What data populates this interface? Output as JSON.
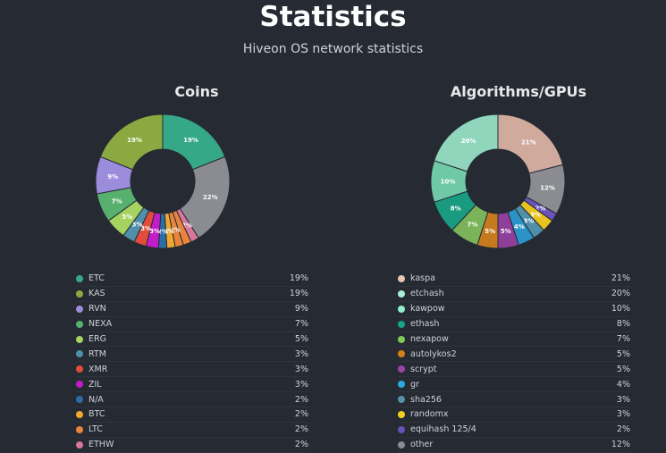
{
  "title": "Statistics",
  "subtitle": "Hiveon OS network statistics",
  "chart_data": [
    {
      "type": "pie",
      "title": "Coins",
      "donut": true,
      "slices": [
        {
          "label": "ETC",
          "value": 19,
          "display": "19%",
          "color": "#35a987"
        },
        {
          "label": "",
          "value": 22,
          "display": "22%",
          "color": "#8a8c91"
        },
        {
          "label": "",
          "value": 2,
          "display": "2%",
          "color": "#d9779a"
        },
        {
          "label": "",
          "value": 2,
          "display": "",
          "color": "#e8843c"
        },
        {
          "label": "LTC",
          "value": 2,
          "display": "2%",
          "color": "#e8843c"
        },
        {
          "label": "BTC",
          "value": 2,
          "display": "2%",
          "color": "#f0a930"
        },
        {
          "label": "N/A",
          "value": 2,
          "display": "2%",
          "color": "#2c6da7"
        },
        {
          "label": "ZIL",
          "value": 3,
          "display": "3%",
          "color": "#c21dc8"
        },
        {
          "label": "XMR",
          "value": 3,
          "display": "3%",
          "color": "#e04d3c"
        },
        {
          "label": "RTM",
          "value": 3,
          "display": "3%",
          "color": "#4f8fa9"
        },
        {
          "label": "ERG",
          "value": 5,
          "display": "5%",
          "color": "#a6d25f"
        },
        {
          "label": "NEXA",
          "value": 7,
          "display": "7%",
          "color": "#58b06e"
        },
        {
          "label": "RVN",
          "value": 9,
          "display": "9%",
          "color": "#9b8cdc"
        },
        {
          "label": "KAS",
          "value": 19,
          "display": "19%",
          "color": "#8aaa41"
        }
      ],
      "legend": [
        {
          "label": "ETC",
          "value": "19%",
          "color": "#35a987"
        },
        {
          "label": "KAS",
          "value": "19%",
          "color": "#8aaa41"
        },
        {
          "label": "RVN",
          "value": "9%",
          "color": "#9b8cdc"
        },
        {
          "label": "NEXA",
          "value": "7%",
          "color": "#58b06e"
        },
        {
          "label": "ERG",
          "value": "5%",
          "color": "#a6d25f"
        },
        {
          "label": "RTM",
          "value": "3%",
          "color": "#4f8fa9"
        },
        {
          "label": "XMR",
          "value": "3%",
          "color": "#e04d3c"
        },
        {
          "label": "ZIL",
          "value": "3%",
          "color": "#c21dc8"
        },
        {
          "label": "N/A",
          "value": "2%",
          "color": "#2c6da7"
        },
        {
          "label": "BTC",
          "value": "2%",
          "color": "#f0a930"
        },
        {
          "label": "LTC",
          "value": "2%",
          "color": "#e8843c"
        },
        {
          "label": "ETHW",
          "value": "2%",
          "color": "#d9779a"
        }
      ]
    },
    {
      "type": "pie",
      "title": "Algorithms/GPUs",
      "donut": true,
      "slices": [
        {
          "label": "kaspa",
          "value": 21,
          "display": "21%",
          "color": "#d0aa9c"
        },
        {
          "label": "",
          "value": 12,
          "display": "12%",
          "color": "#8a8c91"
        },
        {
          "label": "equihash 125/4",
          "value": 2,
          "display": "2%",
          "color": "#6a52b8"
        },
        {
          "label": "randomx",
          "value": 3,
          "display": "3%",
          "color": "#e8c21f"
        },
        {
          "label": "sha256",
          "value": 3,
          "display": "3%",
          "color": "#4f8fa9"
        },
        {
          "label": "gr",
          "value": 4,
          "display": "4%",
          "color": "#2b93c7"
        },
        {
          "label": "scrypt",
          "value": 5,
          "display": "5%",
          "color": "#8e3f99"
        },
        {
          "label": "autolykos2",
          "value": 5,
          "display": "5%",
          "color": "#c57a1d"
        },
        {
          "label": "nexapow",
          "value": 7,
          "display": "7%",
          "color": "#7bb35a"
        },
        {
          "label": "ethash",
          "value": 8,
          "display": "8%",
          "color": "#1a9a7f"
        },
        {
          "label": "kawpow",
          "value": 10,
          "display": "10%",
          "color": "#6fc8a6"
        },
        {
          "label": "etchash",
          "value": 20,
          "display": "20%",
          "color": "#8fd6bd"
        }
      ],
      "legend": [
        {
          "label": "kaspa",
          "value": "21%",
          "color": "#e9c5b4"
        },
        {
          "label": "etchash",
          "value": "20%",
          "color": "#a8f0d4"
        },
        {
          "label": "kawpow",
          "value": "10%",
          "color": "#90efc8"
        },
        {
          "label": "ethash",
          "value": "8%",
          "color": "#16a48a"
        },
        {
          "label": "nexapow",
          "value": "7%",
          "color": "#7cc85a"
        },
        {
          "label": "autolykos2",
          "value": "5%",
          "color": "#d4801a"
        },
        {
          "label": "scrypt",
          "value": "5%",
          "color": "#9b44a8"
        },
        {
          "label": "gr",
          "value": "4%",
          "color": "#2ea8e0"
        },
        {
          "label": "sha256",
          "value": "3%",
          "color": "#5590a8"
        },
        {
          "label": "randomx",
          "value": "3%",
          "color": "#f0d01c"
        },
        {
          "label": "equihash 125/4",
          "value": "2%",
          "color": "#6750b6"
        },
        {
          "label": "other",
          "value": "12%",
          "color": "#8a8c91"
        }
      ]
    }
  ]
}
